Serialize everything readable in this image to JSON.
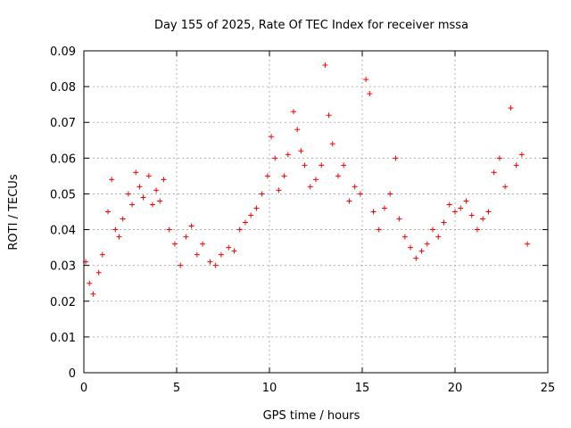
{
  "chart_data": {
    "type": "scatter",
    "title": "Day 155 of 2025, Rate Of TEC Index for receiver mssa",
    "xlabel": "GPS time / hours",
    "ylabel": "ROTI / TECUs",
    "xlim": [
      0,
      25
    ],
    "ylim": [
      0,
      0.09
    ],
    "x_ticks": [
      "0",
      "5",
      "10",
      "15",
      "20",
      "25"
    ],
    "y_ticks": [
      "0",
      "0.01",
      "0.02",
      "0.03",
      "0.04",
      "0.05",
      "0.06",
      "0.07",
      "0.08",
      "0.09"
    ],
    "grid": true,
    "marker": "plus",
    "color": "#ff0000",
    "series": [
      {
        "x": [
          0.1,
          0.3,
          0.5,
          0.8,
          1.0,
          1.3,
          1.5,
          1.7,
          1.9,
          2.1,
          2.4,
          2.6,
          2.8,
          3.0,
          3.2,
          3.5,
          3.7,
          3.9,
          4.1,
          4.3,
          4.6,
          4.9,
          5.2,
          5.5,
          5.8,
          6.1,
          6.4,
          6.8,
          7.1,
          7.4,
          7.8,
          8.1,
          8.4,
          8.7,
          9.0,
          9.3,
          9.6,
          9.9,
          10.1,
          10.3,
          10.5,
          10.8,
          11.0,
          11.3,
          11.5,
          11.7,
          11.9,
          12.2,
          12.5,
          12.8,
          13.0,
          13.2,
          13.4,
          13.7,
          14.0,
          14.3,
          14.6,
          14.9,
          15.2,
          15.4,
          15.6,
          15.9,
          16.2,
          16.5,
          16.8,
          17.0,
          17.3,
          17.6,
          17.9,
          18.2,
          18.5,
          18.8,
          19.1,
          19.4,
          19.7,
          20.0,
          20.3,
          20.6,
          20.9,
          21.2,
          21.5,
          21.8,
          22.1,
          22.4,
          22.7,
          23.0,
          23.3,
          23.6,
          23.9
        ],
        "y": [
          0.031,
          0.025,
          0.022,
          0.028,
          0.033,
          0.045,
          0.054,
          0.04,
          0.038,
          0.043,
          0.05,
          0.047,
          0.056,
          0.052,
          0.049,
          0.055,
          0.047,
          0.051,
          0.048,
          0.054,
          0.04,
          0.036,
          0.03,
          0.038,
          0.041,
          0.033,
          0.036,
          0.031,
          0.03,
          0.033,
          0.035,
          0.034,
          0.04,
          0.042,
          0.044,
          0.046,
          0.05,
          0.055,
          0.066,
          0.06,
          0.051,
          0.055,
          0.061,
          0.073,
          0.068,
          0.062,
          0.058,
          0.052,
          0.054,
          0.058,
          0.086,
          0.072,
          0.064,
          0.055,
          0.058,
          0.048,
          0.052,
          0.05,
          0.082,
          0.078,
          0.045,
          0.04,
          0.046,
          0.05,
          0.06,
          0.043,
          0.038,
          0.035,
          0.032,
          0.034,
          0.036,
          0.04,
          0.038,
          0.042,
          0.047,
          0.045,
          0.046,
          0.048,
          0.044,
          0.04,
          0.043,
          0.045,
          0.056,
          0.06,
          0.052,
          0.074,
          0.058,
          0.061,
          0.036
        ]
      }
    ]
  }
}
